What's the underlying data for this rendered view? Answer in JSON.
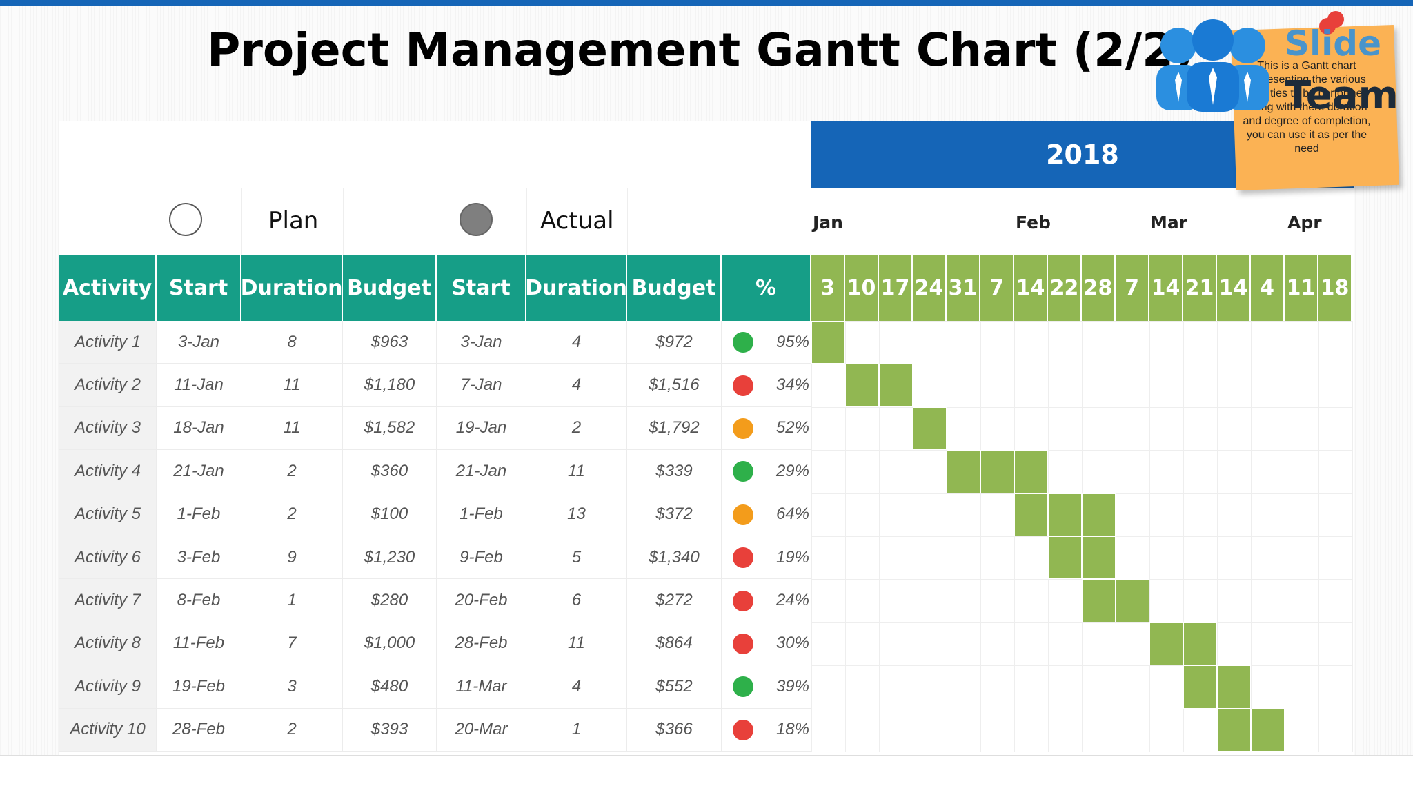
{
  "title": "Project Management Gantt Chart (2/2)",
  "year": "2018",
  "legend": {
    "plan": "Plan",
    "actual": "Actual"
  },
  "months": [
    "Jan",
    "Feb",
    "Mar",
    "Apr"
  ],
  "headers": [
    "Activity",
    "Start",
    "Duration",
    "Budget",
    "Start",
    "Duration",
    "Budget",
    "%"
  ],
  "note": "This is a Gantt chart representing the various activities to be performed along with there duration and degree of completion, you can use it as per the need",
  "logo": {
    "word1": "Slide",
    "word2": "Team"
  },
  "colors": {
    "green": "#2eb04a",
    "red": "#e8403a",
    "orange": "#f39c1b",
    "bar": "#91b752",
    "header": "#169e87",
    "year": "#1565b7"
  },
  "chart_data": {
    "type": "table",
    "week_labels": [
      "3",
      "10",
      "17",
      "24",
      "31",
      "7",
      "14",
      "22",
      "28",
      "7",
      "14",
      "21",
      "14",
      "4",
      "11",
      "18"
    ],
    "rows": [
      {
        "activity": "Activity 1",
        "plan_start": "3-Jan",
        "plan_duration": "8",
        "plan_budget": "$963",
        "actual_start": "3-Jan",
        "actual_duration": "4",
        "actual_budget": "$972",
        "status": "green",
        "percent": "95%",
        "bar_start": 0,
        "bar_len": 1
      },
      {
        "activity": "Activity 2",
        "plan_start": "11-Jan",
        "plan_duration": "11",
        "plan_budget": "$1,180",
        "actual_start": "7-Jan",
        "actual_duration": "4",
        "actual_budget": "$1,516",
        "status": "red",
        "percent": "34%",
        "bar_start": 1,
        "bar_len": 2
      },
      {
        "activity": "Activity 3",
        "plan_start": "18-Jan",
        "plan_duration": "11",
        "plan_budget": "$1,582",
        "actual_start": "19-Jan",
        "actual_duration": "2",
        "actual_budget": "$1,792",
        "status": "orange",
        "percent": "52%",
        "bar_start": 3,
        "bar_len": 1
      },
      {
        "activity": "Activity 4",
        "plan_start": "21-Jan",
        "plan_duration": "2",
        "plan_budget": "$360",
        "actual_start": "21-Jan",
        "actual_duration": "11",
        "actual_budget": "$339",
        "status": "green",
        "percent": "29%",
        "bar_start": 4,
        "bar_len": 3
      },
      {
        "activity": "Activity 5",
        "plan_start": "1-Feb",
        "plan_duration": "2",
        "plan_budget": "$100",
        "actual_start": "1-Feb",
        "actual_duration": "13",
        "actual_budget": "$372",
        "status": "orange",
        "percent": "64%",
        "bar_start": 6,
        "bar_len": 3
      },
      {
        "activity": "Activity 6",
        "plan_start": "3-Feb",
        "plan_duration": "9",
        "plan_budget": "$1,230",
        "actual_start": "9-Feb",
        "actual_duration": "5",
        "actual_budget": "$1,340",
        "status": "red",
        "percent": "19%",
        "bar_start": 7,
        "bar_len": 2
      },
      {
        "activity": "Activity 7",
        "plan_start": "8-Feb",
        "plan_duration": "1",
        "plan_budget": "$280",
        "actual_start": "20-Feb",
        "actual_duration": "6",
        "actual_budget": "$272",
        "status": "red",
        "percent": "24%",
        "bar_start": 8,
        "bar_len": 2
      },
      {
        "activity": "Activity 8",
        "plan_start": "11-Feb",
        "plan_duration": "7",
        "plan_budget": "$1,000",
        "actual_start": "28-Feb",
        "actual_duration": "11",
        "actual_budget": "$864",
        "status": "red",
        "percent": "30%",
        "bar_start": 10,
        "bar_len": 2
      },
      {
        "activity": "Activity 9",
        "plan_start": "19-Feb",
        "plan_duration": "3",
        "plan_budget": "$480",
        "actual_start": "11-Mar",
        "actual_duration": "4",
        "actual_budget": "$552",
        "status": "green",
        "percent": "39%",
        "bar_start": 11,
        "bar_len": 2
      },
      {
        "activity": "Activity 10",
        "plan_start": "28-Feb",
        "plan_duration": "2",
        "plan_budget": "$393",
        "actual_start": "20-Mar",
        "actual_duration": "1",
        "actual_budget": "$366",
        "status": "red",
        "percent": "18%",
        "bar_start": 12,
        "bar_len": 2
      }
    ]
  }
}
